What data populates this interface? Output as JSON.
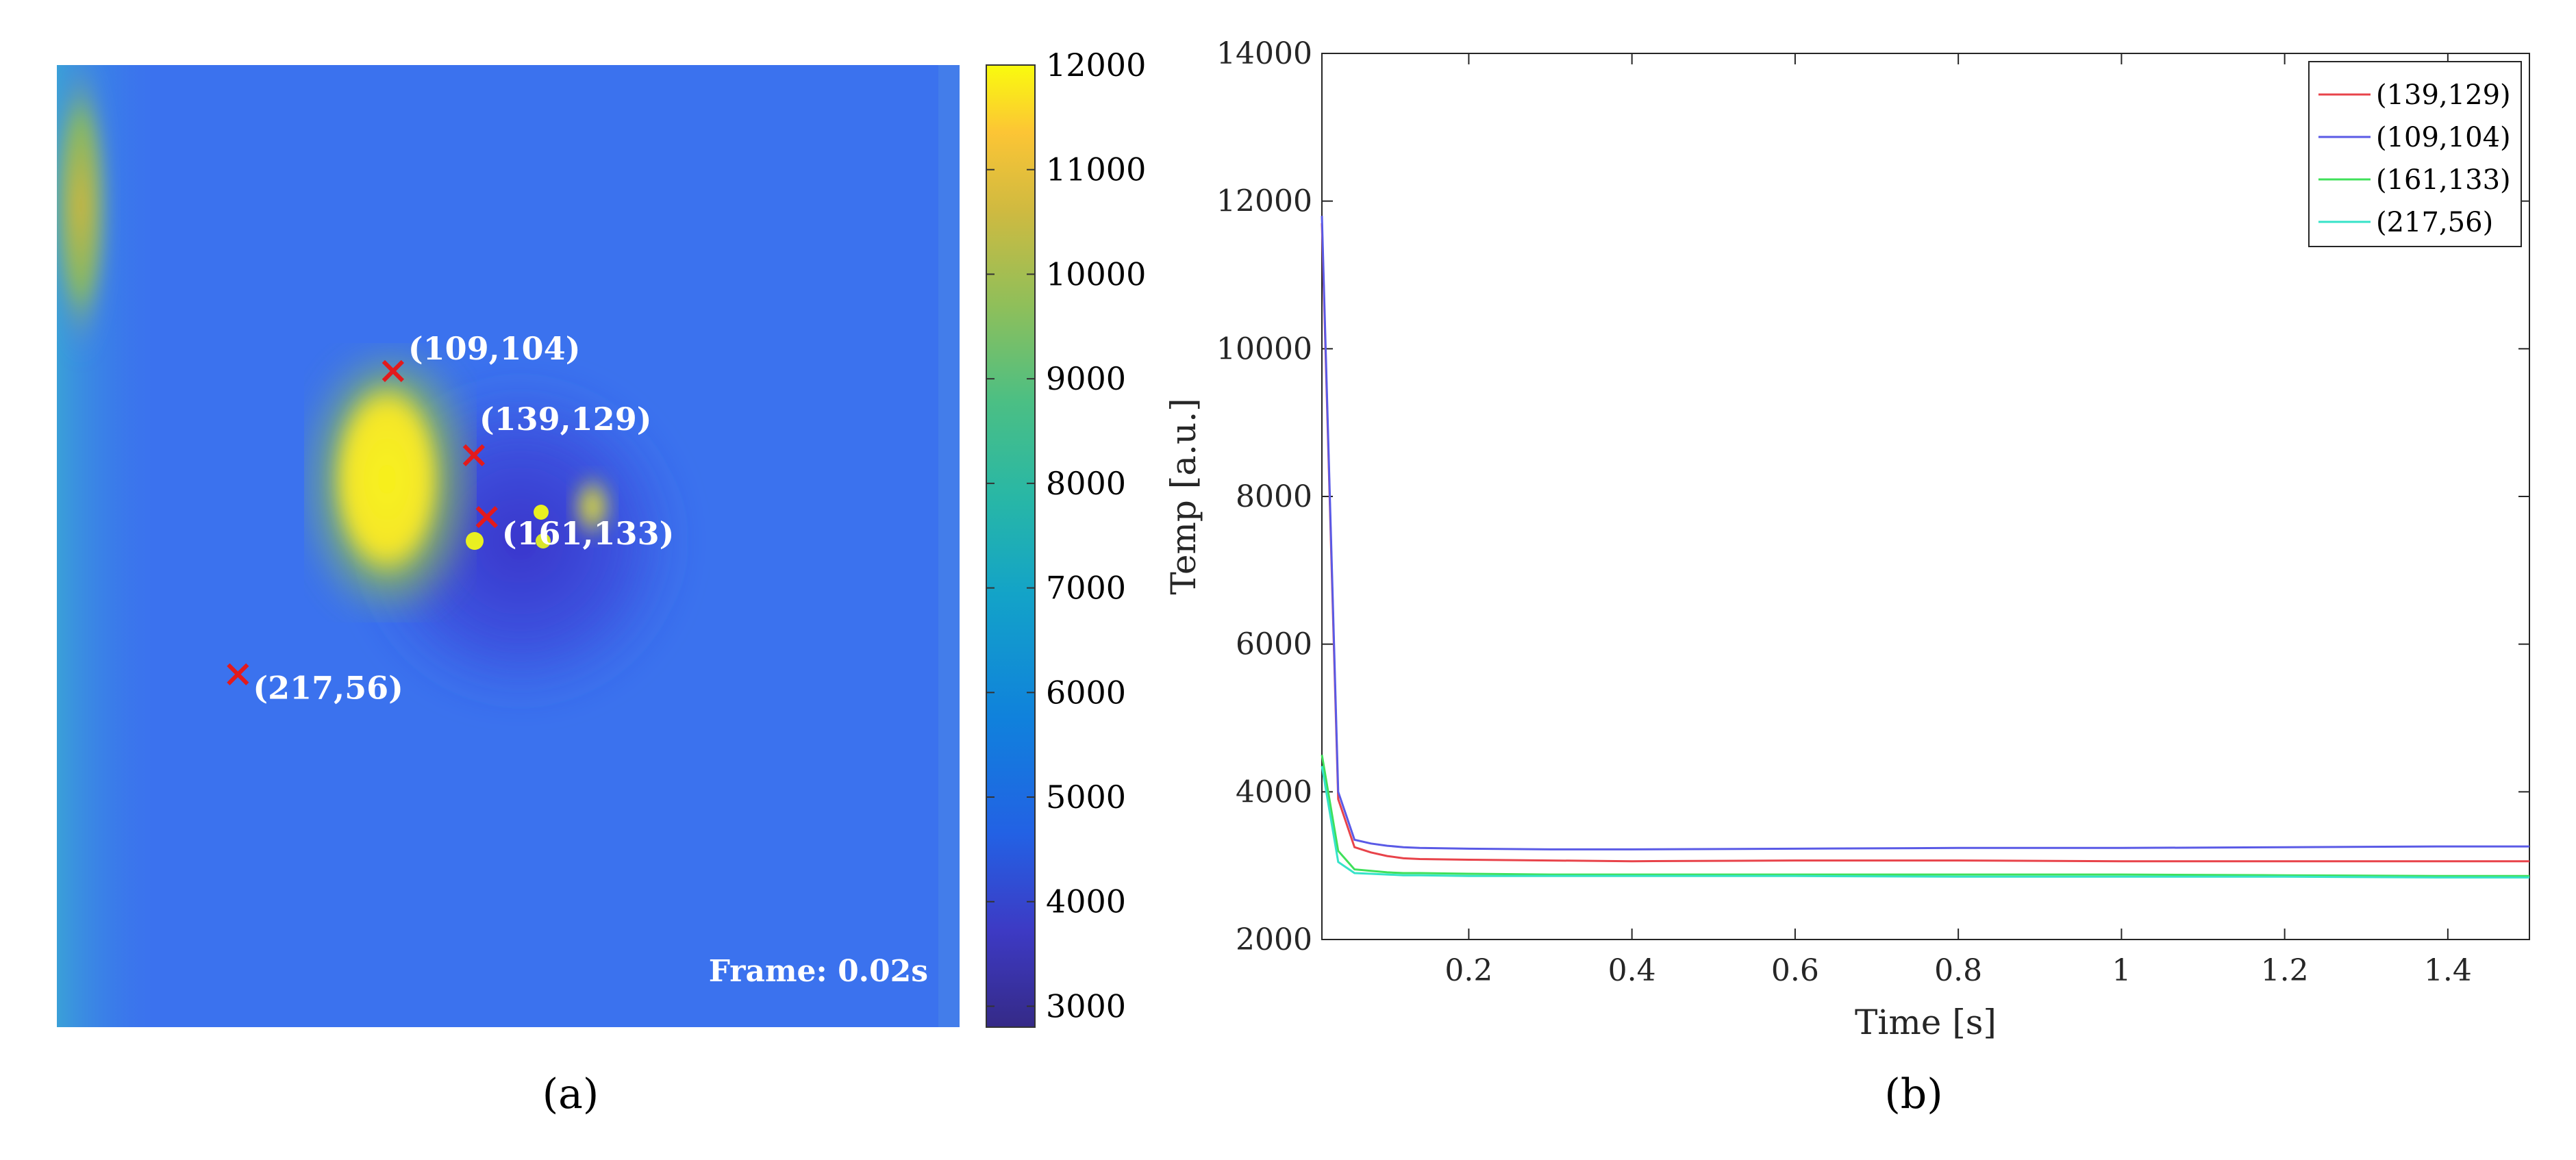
{
  "panel_a": {
    "label": "(a)",
    "frame_label": "Frame: 0.02s",
    "markers": [
      {
        "label": "(109,104)",
        "row": 109,
        "col": 104
      },
      {
        "label": "(139,129)",
        "row": 139,
        "col": 129
      },
      {
        "label": "(161,133)",
        "row": 161,
        "col": 133
      },
      {
        "label": "(217,56)",
        "row": 217,
        "col": 56
      }
    ],
    "marker_color": "#e31a1c",
    "colorbar": {
      "ticks": [
        3000,
        4000,
        5000,
        6000,
        7000,
        8000,
        9000,
        10000,
        11000,
        12000
      ],
      "range": [
        2800,
        12000
      ],
      "colormap": "parula"
    }
  },
  "panel_b": {
    "label": "(b)"
  },
  "chart_data": {
    "type": "line",
    "title": "",
    "xlabel": "Time [s]",
    "ylabel": "Temp [a.u.]",
    "xlim": [
      0.02,
      1.5
    ],
    "ylim": [
      2000,
      14000
    ],
    "xticks": [
      0.2,
      0.4,
      0.6,
      0.8,
      1,
      1.2,
      1.4
    ],
    "yticks": [
      2000,
      4000,
      6000,
      8000,
      10000,
      12000,
      14000
    ],
    "grid": false,
    "legend_position": "top-right",
    "x": [
      0.02,
      0.04,
      0.06,
      0.08,
      0.1,
      0.12,
      0.14,
      0.2,
      0.3,
      0.4,
      0.6,
      0.8,
      1.0,
      1.2,
      1.4,
      1.5
    ],
    "series": [
      {
        "name": "(139,129)",
        "color": "#e8434a",
        "values": [
          11700,
          3900,
          3250,
          3180,
          3130,
          3100,
          3090,
          3080,
          3070,
          3060,
          3070,
          3070,
          3060,
          3060,
          3060,
          3060
        ]
      },
      {
        "name": "(109,104)",
        "color": "#5a5ae6",
        "values": [
          11800,
          4000,
          3350,
          3300,
          3270,
          3250,
          3240,
          3230,
          3220,
          3220,
          3230,
          3240,
          3240,
          3250,
          3260,
          3260
        ]
      },
      {
        "name": "(161,133)",
        "color": "#3fe05a",
        "values": [
          4500,
          3200,
          2950,
          2930,
          2910,
          2900,
          2900,
          2890,
          2880,
          2880,
          2880,
          2880,
          2880,
          2870,
          2860,
          2860
        ]
      },
      {
        "name": "(217,56)",
        "color": "#36e3c8",
        "values": [
          4350,
          3050,
          2900,
          2890,
          2880,
          2870,
          2870,
          2860,
          2860,
          2860,
          2860,
          2850,
          2850,
          2850,
          2840,
          2840
        ]
      }
    ]
  }
}
